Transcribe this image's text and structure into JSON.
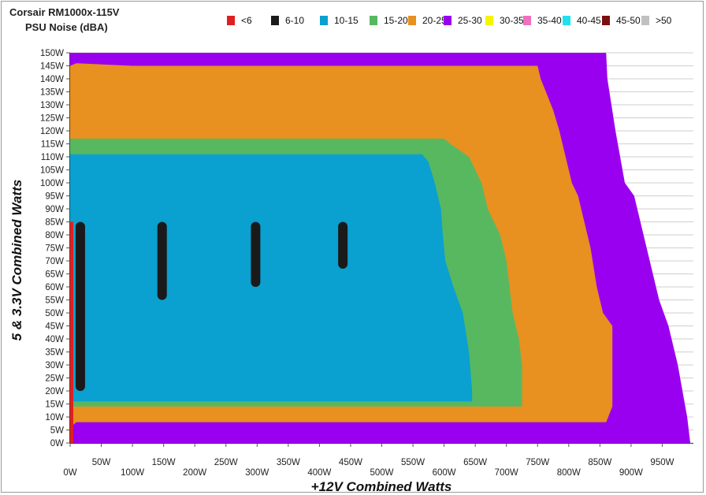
{
  "chart_data": {
    "type": "heatmap",
    "title": "Corsair RM1000x-115V",
    "subtitle": "PSU Noise (dBA)",
    "xlabel": "+12V Combined Watts",
    "ylabel": "5 & 3.3V Combined Watts",
    "x_ticks": [
      "0W",
      "50W",
      "100W",
      "150W",
      "200W",
      "250W",
      "300W",
      "350W",
      "400W",
      "450W",
      "500W",
      "550W",
      "600W",
      "650W",
      "700W",
      "750W",
      "800W",
      "850W",
      "900W",
      "950W"
    ],
    "y_ticks": [
      "0W",
      "5W",
      "10W",
      "15W",
      "20W",
      "25W",
      "30W",
      "35W",
      "40W",
      "45W",
      "50W",
      "55W",
      "60W",
      "65W",
      "70W",
      "75W",
      "80W",
      "85W",
      "90W",
      "95W",
      "100W",
      "105W",
      "110W",
      "115W",
      "120W",
      "125W",
      "130W",
      "135W",
      "140W",
      "145W",
      "150W"
    ],
    "xlim": [
      0,
      1000
    ],
    "ylim": [
      0,
      150
    ],
    "grid": true,
    "legend_position": "top-right",
    "legend": [
      {
        "label": "<6",
        "color": "#e02020"
      },
      {
        "label": "6-10",
        "color": "#1a1a1a"
      },
      {
        "label": "10-15",
        "color": "#0aa0d0"
      },
      {
        "label": "15-20",
        "color": "#58b860"
      },
      {
        "label": "20-25",
        "color": "#e89020"
      },
      {
        "label": "25-30",
        "color": "#9a00f0"
      },
      {
        "label": "30-35",
        "color": "#f5f500"
      },
      {
        "label": "35-40",
        "color": "#f070c0"
      },
      {
        "label": "40-45",
        "color": "#20e0f0"
      },
      {
        "label": "45-50",
        "color": "#7a1010"
      },
      {
        "label": ">50",
        "color": "#c0c0c0"
      }
    ],
    "regions": [
      {
        "band": "25-30",
        "x": [
          0,
          995
        ],
        "y_at_x": [
          [
            0,
            150
          ],
          [
            860,
            150
          ],
          [
            870,
            120
          ],
          [
            900,
            95
          ],
          [
            930,
            70
          ],
          [
            970,
            40
          ],
          [
            995,
            10
          ]
        ],
        "note_bottom": 0
      },
      {
        "band": "20-25",
        "upper_boundary": [
          [
            0,
            144
          ],
          [
            100,
            145
          ],
          [
            750,
            145
          ],
          [
            760,
            135
          ],
          [
            780,
            130
          ],
          [
            800,
            110
          ],
          [
            820,
            90
          ],
          [
            840,
            75
          ],
          [
            860,
            50
          ],
          [
            870,
            20
          ],
          [
            870,
            14
          ]
        ],
        "lower_boundary": [
          [
            0,
            11
          ],
          [
            850,
            11
          ]
        ]
      },
      {
        "band": "15-20",
        "upper_boundary": [
          [
            0,
            117
          ],
          [
            600,
            117
          ],
          [
            650,
            95
          ],
          [
            700,
            75
          ],
          [
            720,
            40
          ],
          [
            720,
            16
          ]
        ],
        "lower_boundary": [
          [
            0,
            14
          ],
          [
            720,
            14
          ]
        ]
      },
      {
        "band": "10-15",
        "upper_boundary": [
          [
            0,
            111
          ],
          [
            580,
            111
          ],
          [
            600,
            95
          ],
          [
            620,
            70
          ],
          [
            640,
            40
          ],
          [
            650,
            20
          ]
        ],
        "lower_boundary": [
          [
            0,
            16
          ],
          [
            650,
            16
          ]
        ]
      },
      {
        "band": "6-10",
        "cells": [
          [
            5,
            20,
            85
          ],
          [
            140,
            55,
            85
          ],
          [
            290,
            60,
            85
          ],
          [
            430,
            67,
            85
          ]
        ]
      },
      {
        "band": "<6",
        "cells": [
          [
            0,
            0,
            85
          ]
        ]
      }
    ]
  }
}
